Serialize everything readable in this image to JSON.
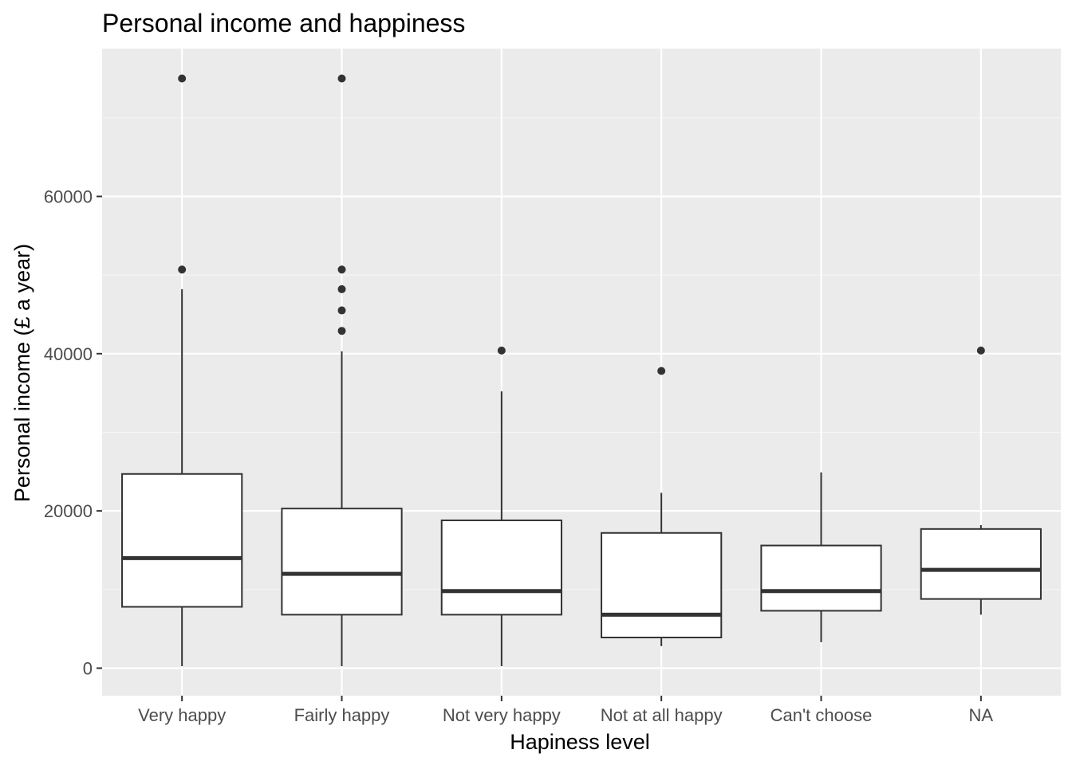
{
  "chart_data": {
    "type": "box",
    "title": "Personal income and happiness",
    "xlabel": "Hapiness level",
    "ylabel": "Personal income (£ a year)",
    "ylim": [
      -3500,
      78800
    ],
    "yticks": [
      0,
      20000,
      40000,
      60000
    ],
    "grid": true,
    "legend": "none",
    "categories": [
      "Very happy",
      "Fairly happy",
      "Not very happy",
      "Not at all happy",
      "Can't choose",
      "NA"
    ],
    "boxes": [
      {
        "category": "Very happy",
        "whisker_low": 250,
        "q1": 7800,
        "median": 14000,
        "q3": 24700,
        "whisker_high": 48200,
        "outliers": [
          50700,
          75000
        ]
      },
      {
        "category": "Fairly happy",
        "whisker_low": 250,
        "q1": 6800,
        "median": 12000,
        "q3": 20300,
        "whisker_high": 40300,
        "outliers": [
          42900,
          45500,
          48200,
          50700,
          75000
        ]
      },
      {
        "category": "Not very happy",
        "whisker_low": 250,
        "q1": 6800,
        "median": 9800,
        "q3": 18800,
        "whisker_high": 35200,
        "outliers": [
          40400
        ]
      },
      {
        "category": "Not at all happy",
        "whisker_low": 2800,
        "q1": 3900,
        "median": 6800,
        "q3": 17200,
        "whisker_high": 22300,
        "outliers": [
          37800
        ]
      },
      {
        "category": "Can't choose",
        "whisker_low": 3300,
        "q1": 7300,
        "median": 9800,
        "q3": 15600,
        "whisker_high": 24900,
        "outliers": []
      },
      {
        "category": "NA",
        "whisker_low": 6800,
        "q1": 8800,
        "median": 12500,
        "q3": 17700,
        "whisker_high": 18200,
        "outliers": [
          40400
        ]
      }
    ],
    "colors": {
      "panel_background": "#ebebeb",
      "grid_major": "#ffffff",
      "grid_minor": "#f5f5f5",
      "box_fill": "#ffffff",
      "box_line": "#333333",
      "outlier": "#333333",
      "tick_label": "#4d4d4d",
      "tick_mark": "#333333"
    }
  }
}
